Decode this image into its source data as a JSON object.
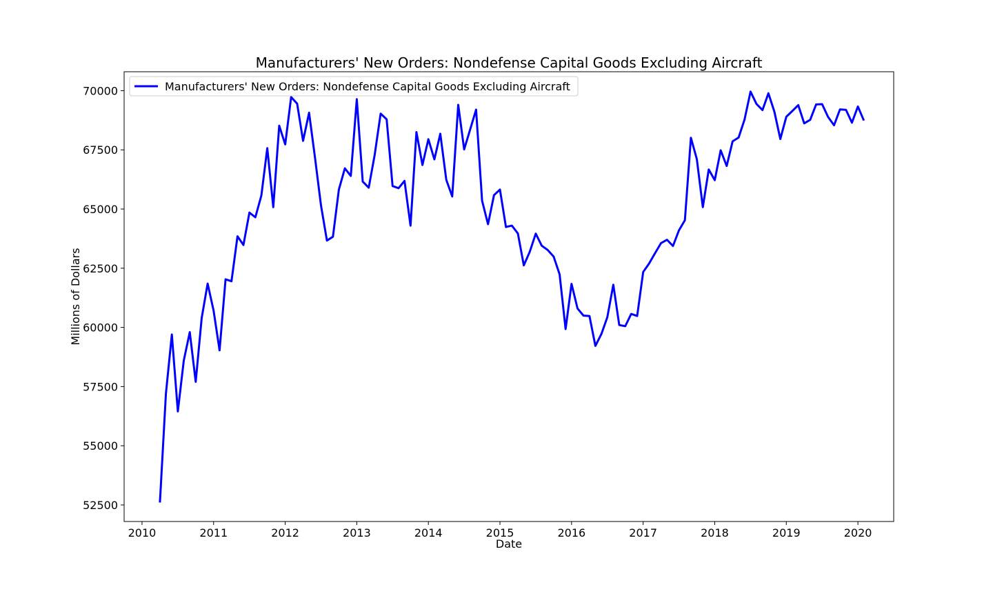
{
  "chart_data": {
    "type": "line",
    "title": "Manufacturers' New Orders: Nondefense Capital Goods Excluding Aircraft",
    "xlabel": "Date",
    "ylabel": "Millions of Dollars",
    "xlim": [
      "2009-10",
      "2020-07"
    ],
    "ylim": [
      51800,
      70800
    ],
    "x_ticks": [
      "2010",
      "2011",
      "2012",
      "2013",
      "2014",
      "2015",
      "2016",
      "2017",
      "2018",
      "2019",
      "2020"
    ],
    "y_ticks": [
      "52500",
      "55000",
      "57500",
      "60000",
      "62500",
      "65000",
      "67500",
      "70000"
    ],
    "grid": false,
    "legend_position": "upper-left",
    "series": [
      {
        "name": "Manufacturers' New Orders: Nondefense Capital Goods Excluding Aircraft",
        "color": "#0000ff",
        "x": [
          "2010-04",
          "2010-05",
          "2010-06",
          "2010-07",
          "2010-08",
          "2010-09",
          "2010-10",
          "2010-11",
          "2010-12",
          "2011-01",
          "2011-02",
          "2011-03",
          "2011-04",
          "2011-05",
          "2011-06",
          "2011-07",
          "2011-08",
          "2011-09",
          "2011-10",
          "2011-11",
          "2011-12",
          "2012-01",
          "2012-02",
          "2012-03",
          "2012-04",
          "2012-05",
          "2012-06",
          "2012-07",
          "2012-08",
          "2012-09",
          "2012-10",
          "2012-11",
          "2012-12",
          "2013-01",
          "2013-02",
          "2013-03",
          "2013-04",
          "2013-05",
          "2013-06",
          "2013-07",
          "2013-08",
          "2013-09",
          "2013-10",
          "2013-11",
          "2013-12",
          "2014-01",
          "2014-02",
          "2014-03",
          "2014-04",
          "2014-05",
          "2014-06",
          "2014-07",
          "2014-08",
          "2014-09",
          "2014-10",
          "2014-11",
          "2014-12",
          "2015-01",
          "2015-02",
          "2015-03",
          "2015-04",
          "2015-05",
          "2015-06",
          "2015-07",
          "2015-08",
          "2015-09",
          "2015-10",
          "2015-11",
          "2015-12",
          "2016-01",
          "2016-02",
          "2016-03",
          "2016-04",
          "2016-05",
          "2016-06",
          "2016-07",
          "2016-08",
          "2016-09",
          "2016-10",
          "2016-11",
          "2016-12",
          "2017-01",
          "2017-02",
          "2017-03",
          "2017-04",
          "2017-05",
          "2017-06",
          "2017-07",
          "2017-08",
          "2017-09",
          "2017-10",
          "2017-11",
          "2017-12",
          "2018-01",
          "2018-02",
          "2018-03",
          "2018-04",
          "2018-05",
          "2018-06",
          "2018-07",
          "2018-08",
          "2018-09",
          "2018-10",
          "2018-11",
          "2018-12",
          "2019-01",
          "2019-02",
          "2019-03",
          "2019-04",
          "2019-05",
          "2019-06",
          "2019-07",
          "2019-08",
          "2019-09",
          "2019-10",
          "2019-11",
          "2019-12",
          "2020-01",
          "2020-02"
        ],
        "values": [
          52600,
          57200,
          59700,
          56450,
          58600,
          59800,
          57700,
          60400,
          61850,
          60700,
          59030,
          62030,
          61950,
          63850,
          63480,
          64850,
          64650,
          65570,
          67570,
          65080,
          68520,
          67730,
          69730,
          69450,
          67880,
          69070,
          67170,
          65150,
          63670,
          63830,
          65820,
          66720,
          66400,
          69640,
          66160,
          65900,
          67280,
          69030,
          68790,
          65970,
          65880,
          66190,
          64300,
          68250,
          66860,
          67950,
          67100,
          68180,
          66230,
          65530,
          69400,
          67520,
          68360,
          69200,
          65350,
          64360,
          65590,
          65820,
          64240,
          64300,
          63970,
          62620,
          63200,
          63960,
          63450,
          63270,
          62990,
          62240,
          59930,
          61840,
          60800,
          60500,
          60480,
          59220,
          59720,
          60430,
          61800,
          60100,
          60050,
          60570,
          60480,
          62340,
          62700,
          63140,
          63560,
          63700,
          63440,
          64100,
          64530,
          68010,
          67110,
          65080,
          66670,
          66220,
          67480,
          66820,
          67860,
          68020,
          68780,
          69960,
          69440,
          69180,
          69890,
          69110,
          67960,
          68900,
          69140,
          69390,
          68620,
          68770,
          69420,
          69430,
          68890,
          68540,
          69210,
          69190,
          68650,
          69330,
          68740
        ]
      }
    ]
  }
}
